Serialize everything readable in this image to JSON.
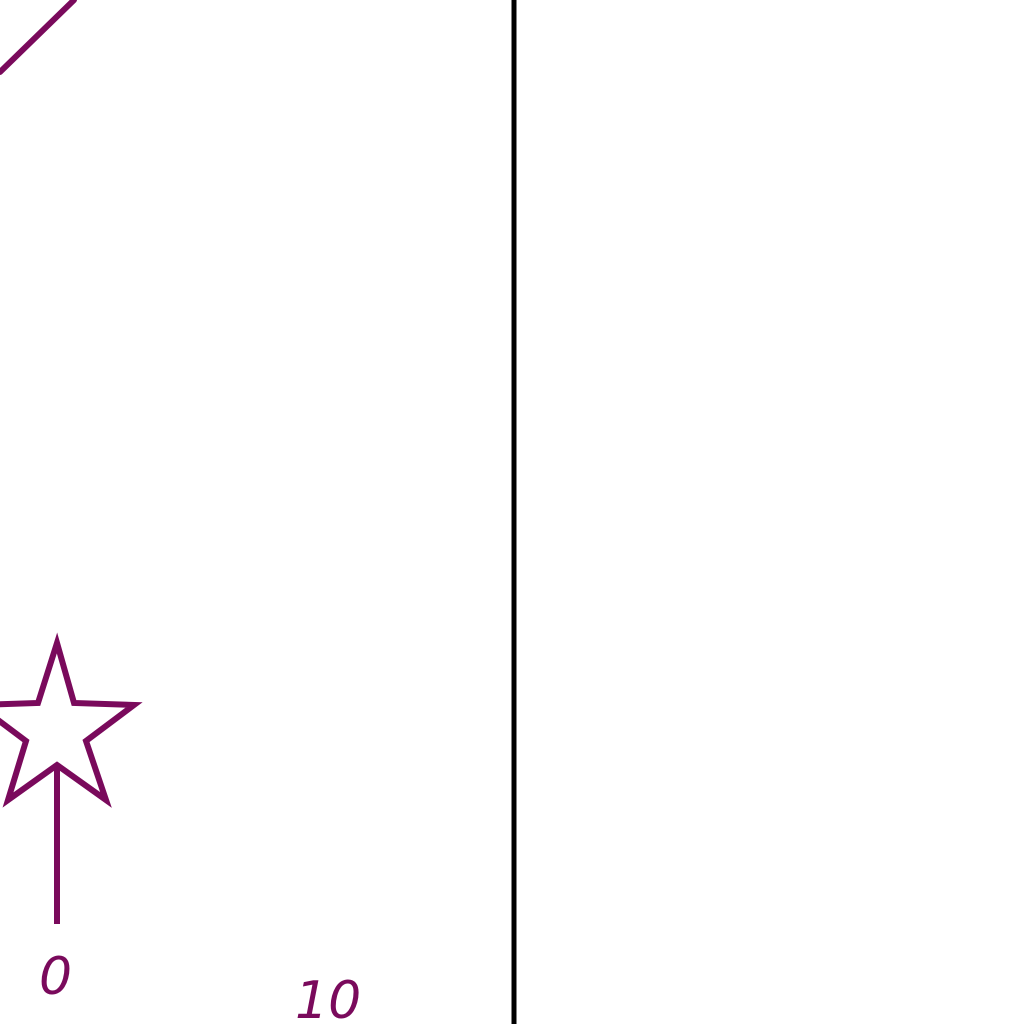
{
  "diagram": {
    "scale_labels": {
      "zero": "0",
      "ten": "10"
    },
    "colors": {
      "ink": "#7a0a5c",
      "divider": "#000000",
      "background": "#ffffff"
    },
    "icons": [
      "star-icon",
      "arrow-stem"
    ]
  }
}
